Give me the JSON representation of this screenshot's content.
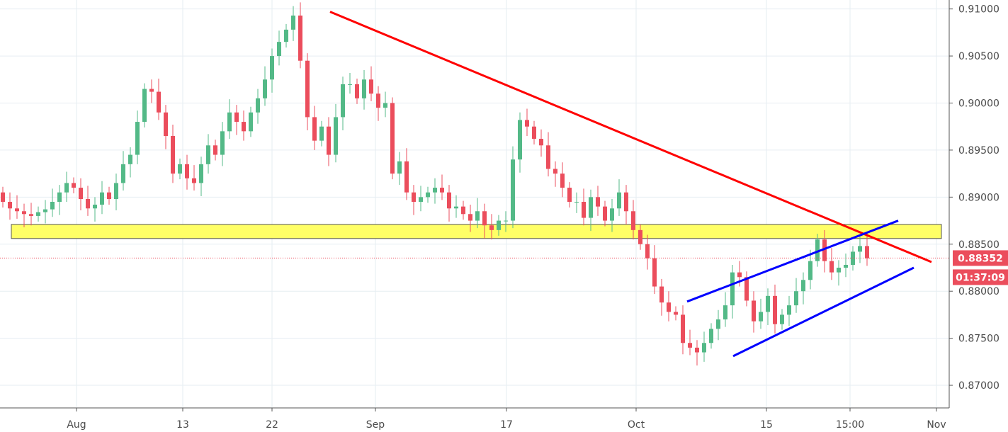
{
  "chart_data": {
    "type": "candlestick",
    "x_tick_labels": [
      "Aug",
      "13",
      "22",
      "Sep",
      "17",
      "Oct",
      "15",
      "15:00",
      "Nov"
    ],
    "y_tick_labels": [
      "0.91000",
      "0.90500",
      "0.90000",
      "0.89500",
      "0.89000",
      "0.88500",
      "0.88000",
      "0.87500",
      "0.87000"
    ],
    "y_ticks": [
      0.91,
      0.905,
      0.9,
      0.895,
      0.89,
      0.885,
      0.88,
      0.875,
      0.87
    ],
    "ylim": [
      0.8691,
      0.91035
    ],
    "grid": true,
    "current_price_label": "0.88352",
    "current_price": 0.88352,
    "countdown_label": "01:37:09",
    "colors": {
      "up": "#53b987",
      "down": "#eb4d5c",
      "trendline": "#ff0000",
      "channel": "#0000ff",
      "zone_fill": "#ffff66",
      "price_tag": "#eb4d5c",
      "grid": "#e6edf2",
      "axis_text": "#4a4a4a"
    },
    "closes": [
      0.8895,
      0.8888,
      0.8885,
      0.8882,
      0.888,
      0.8884,
      0.8887,
      0.8895,
      0.8905,
      0.8915,
      0.891,
      0.8898,
      0.8888,
      0.8892,
      0.8905,
      0.8898,
      0.8915,
      0.8935,
      0.8945,
      0.898,
      0.9015,
      0.9012,
      0.899,
      0.8965,
      0.8925,
      0.8935,
      0.892,
      0.8915,
      0.8935,
      0.8955,
      0.8945,
      0.897,
      0.899,
      0.898,
      0.897,
      0.899,
      0.9005,
      0.9025,
      0.905,
      0.9065,
      0.9078,
      0.9093,
      0.9045,
      0.8985,
      0.896,
      0.8975,
      0.8945,
      0.8985,
      0.902,
      0.902,
      0.9005,
      0.9025,
      0.901,
      0.8995,
      0.9,
      0.8925,
      0.8938,
      0.8905,
      0.8895,
      0.89,
      0.8905,
      0.891,
      0.8905,
      0.8888,
      0.889,
      0.8882,
      0.8875,
      0.8885,
      0.887,
      0.8865,
      0.8875,
      0.8875,
      0.894,
      0.8982,
      0.8975,
      0.8962,
      0.8955,
      0.893,
      0.8925,
      0.891,
      0.8895,
      0.8895,
      0.8878,
      0.89,
      0.889,
      0.8875,
      0.8888,
      0.8905,
      0.8885,
      0.8865,
      0.885,
      0.8835,
      0.8805,
      0.8788,
      0.8778,
      0.8775,
      0.8745,
      0.874,
      0.8735,
      0.8745,
      0.876,
      0.877,
      0.8785,
      0.882,
      0.8815,
      0.879,
      0.8768,
      0.8778,
      0.8795,
      0.8765,
      0.8775,
      0.8785,
      0.88,
      0.8812,
      0.8832,
      0.8855,
      0.8832,
      0.882,
      0.8825,
      0.8828,
      0.8842,
      0.8848,
      0.8835
    ],
    "zone": {
      "upper": 0.8871,
      "lower": 0.8856
    },
    "trendline": {
      "start_price": 0.9097,
      "end_price": 0.8831
    },
    "channel": {
      "upper": {
        "start_price": 0.8789,
        "end_price": 0.8875
      },
      "lower": {
        "start_price": 0.8731,
        "end_price": 0.8825
      }
    }
  }
}
